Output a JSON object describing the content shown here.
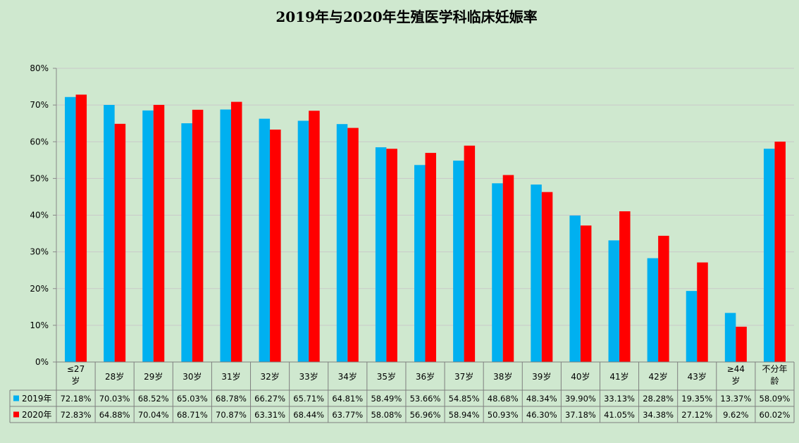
{
  "chart_data": {
    "type": "bar",
    "title": "2019年与2020年生殖医学科临床妊娠率",
    "categories": [
      "≤27岁",
      "28岁",
      "29岁",
      "30岁",
      "31岁",
      "32岁",
      "33岁",
      "34岁",
      "35岁",
      "36岁",
      "37岁",
      "38岁",
      "39岁",
      "40岁",
      "41岁",
      "42岁",
      "43岁",
      "≥44岁",
      "不分年龄"
    ],
    "series": [
      {
        "name": "2019年",
        "color": "#00b0f0",
        "values": [
          72.18,
          70.03,
          68.52,
          65.03,
          68.78,
          66.27,
          65.71,
          64.81,
          58.49,
          53.66,
          54.85,
          48.68,
          48.34,
          39.9,
          33.13,
          28.28,
          19.35,
          13.37,
          58.09
        ],
        "labels": [
          "72.18%",
          "70.03%",
          "68.52%",
          "65.03%",
          "68.78%",
          "66.27%",
          "65.71%",
          "64.81%",
          "58.49%",
          "53.66%",
          "54.85%",
          "48.68%",
          "48.34%",
          "39.90%",
          "33.13%",
          "28.28%",
          "19.35%",
          "13.37%",
          "58.09%"
        ]
      },
      {
        "name": "2020年",
        "color": "#ff0000",
        "values": [
          72.83,
          64.88,
          70.04,
          68.71,
          70.87,
          63.31,
          68.44,
          63.77,
          58.08,
          56.96,
          58.94,
          50.93,
          46.3,
          37.18,
          41.05,
          34.38,
          27.12,
          9.62,
          60.02
        ],
        "labels": [
          "72.83%",
          "64.88%",
          "70.04%",
          "68.71%",
          "70.87%",
          "63.31%",
          "68.44%",
          "63.77%",
          "58.08%",
          "56.96%",
          "58.94%",
          "50.93%",
          "46.30%",
          "37.18%",
          "41.05%",
          "34.38%",
          "27.12%",
          "9.62%",
          "60.02%"
        ]
      }
    ],
    "yticks": [
      "0%",
      "10%",
      "20%",
      "30%",
      "40%",
      "50%",
      "60%",
      "70%",
      "80%"
    ],
    "ylim": [
      0,
      80
    ],
    "grid": true,
    "legend": "data-table"
  }
}
